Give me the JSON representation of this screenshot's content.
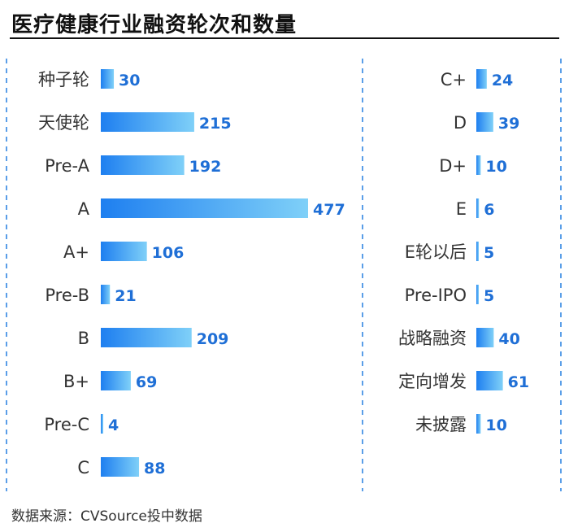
{
  "title": "医疗健康行业融资轮次和数量",
  "source": "数据来源：CVSource投中数据",
  "colors": {
    "bar_start": "#1e7ff0",
    "bar_end": "#7fd0f8",
    "value": "#1f6fd6",
    "label": "#333333",
    "divider": "#5a9ee8"
  },
  "chart_data": [
    {
      "type": "bar",
      "orientation": "horizontal",
      "categories": [
        "种子轮",
        "天使轮",
        "Pre-A",
        "A",
        "A+",
        "Pre-B",
        "B",
        "B+",
        "Pre-C",
        "C"
      ],
      "values": [
        30,
        215,
        192,
        477,
        106,
        21,
        209,
        69,
        4,
        88
      ]
    },
    {
      "type": "bar",
      "orientation": "horizontal",
      "categories": [
        "C+",
        "D",
        "D+",
        "E",
        "E轮以后",
        "Pre-IPO",
        "战略融资",
        "定向增发",
        "未披露"
      ],
      "values": [
        24,
        39,
        10,
        6,
        5,
        5,
        40,
        61,
        10
      ]
    }
  ]
}
